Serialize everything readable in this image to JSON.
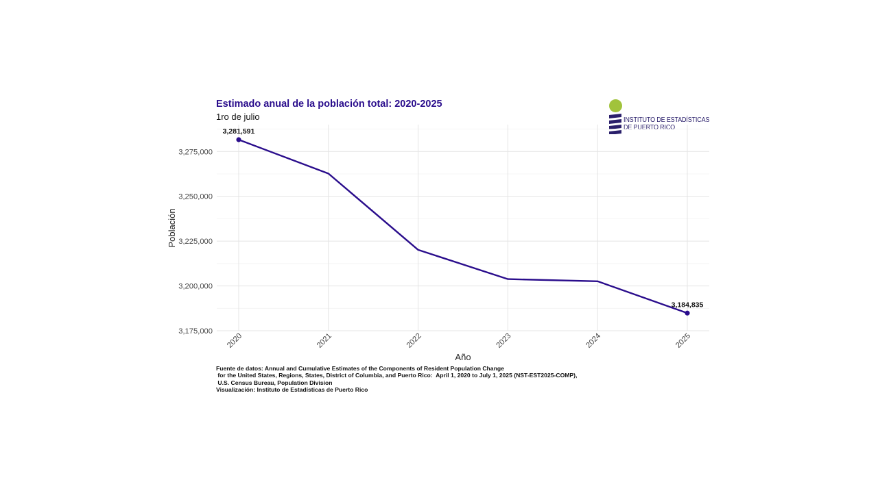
{
  "chart_data": {
    "type": "line",
    "title": "Estimado anual de la población total: 2020-2025",
    "subtitle": "1ro de julio",
    "xlabel": "Año",
    "ylabel": "Población",
    "x": [
      "2020",
      "2021",
      "2022",
      "2023",
      "2024",
      "2025"
    ],
    "series": [
      {
        "name": "Población",
        "values": [
          3281591,
          3262693,
          3220113,
          3203789,
          3202568,
          3184835
        ]
      }
    ],
    "ylim": [
      3175000,
      3290000
    ],
    "yticks": [
      3175000,
      3200000,
      3225000,
      3250000,
      3275000
    ],
    "ytick_labels": [
      "3,175,000",
      "3,200,000",
      "3,225,000",
      "3,250,000",
      "3,275,000"
    ],
    "data_labels": [
      {
        "index": 0,
        "text": "3,281,591"
      },
      {
        "index": 5,
        "text": "3,184,835"
      }
    ],
    "grid": true,
    "line_color": "#2a0d8c"
  },
  "logo": {
    "line1": "INSTITUTO DE ESTADÍSTICAS",
    "line2": "DE PUERTO RICO",
    "dot_color": "#a1c33b",
    "text_color": "#2a1f6b"
  },
  "source": {
    "line1": "Fuente de datos: Annual and Cumulative Estimates of the Components of Resident Population Change",
    "line2": " for the United States, Regions, States, District of Columbia, and Puerto Rico:  April 1, 2020 to July 1, 2025 (NST-EST2025-COMP),",
    "line3": " U.S. Census Bureau, Population Division",
    "line4": "Visualización: Instituto de Estadísticas de Puerto Rico"
  }
}
